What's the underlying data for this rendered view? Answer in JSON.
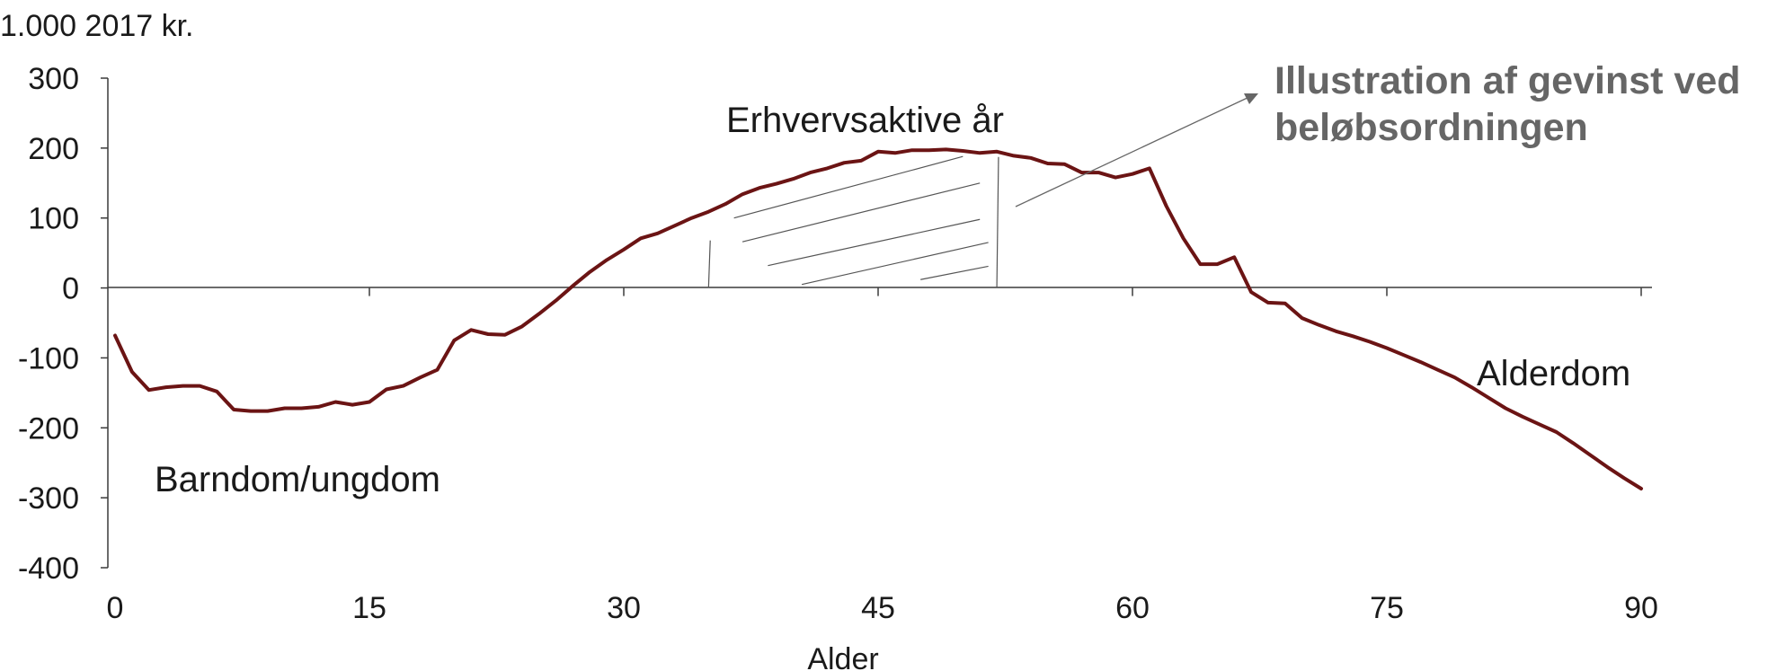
{
  "chart_data": {
    "type": "line",
    "title": "",
    "unit_label": "1.000 2017 kr.",
    "xlabel": "Alder",
    "ylabel": "",
    "xlim": [
      0,
      90
    ],
    "ylim": [
      -400,
      300
    ],
    "x_ticks": [
      0,
      15,
      30,
      45,
      60,
      75,
      90
    ],
    "y_ticks": [
      300,
      200,
      100,
      0,
      -100,
      -200,
      -300,
      -400
    ],
    "line_color": "#6b1414",
    "grid": false,
    "legend": "none",
    "series": [
      {
        "x": [
          0,
          1,
          2,
          3,
          4,
          5,
          6,
          7,
          8,
          9,
          10,
          11,
          12,
          13,
          14,
          15,
          16,
          17,
          18,
          19,
          20,
          21,
          22,
          23,
          24,
          25,
          26,
          27,
          28,
          29,
          30,
          31,
          32,
          33,
          34,
          35,
          36,
          37,
          38,
          39,
          40,
          41,
          42,
          43,
          44,
          45,
          46,
          47,
          48,
          49,
          50,
          51,
          52,
          53,
          54,
          55,
          56,
          57,
          58,
          59,
          60,
          61,
          62,
          63,
          64,
          65,
          66,
          67,
          68,
          69,
          70,
          71,
          72,
          73,
          74,
          75,
          76,
          77,
          78,
          79,
          80,
          81,
          82,
          83,
          84,
          85,
          86,
          87,
          88,
          89,
          90
        ],
        "values": [
          -68,
          -120,
          -146,
          -142,
          -140,
          -140,
          -148,
          -174,
          -176,
          -176,
          -172,
          -172,
          -170,
          -163,
          -167,
          -163,
          -145,
          -140,
          -128,
          -117,
          -75,
          -60,
          -66,
          -67,
          -55,
          -37,
          -18,
          3,
          23,
          40,
          55,
          71,
          78,
          89,
          100,
          109,
          120,
          134,
          143,
          149,
          156,
          165,
          171,
          179,
          182,
          195,
          193,
          197,
          197,
          198,
          196,
          193,
          195,
          189,
          186,
          178,
          177,
          165,
          165,
          158,
          163,
          171,
          117,
          71,
          34,
          34,
          44,
          -6,
          -21,
          -22,
          -43,
          -53,
          -62,
          -69,
          -77,
          -86,
          -96,
          -106,
          -117,
          -128,
          -142,
          -157,
          -172,
          -184,
          -195,
          -206,
          -222,
          -239,
          -256,
          -272,
          -287
        ]
      }
    ],
    "annotations": {
      "childhood": "Barndom/ungdom",
      "working_years": "Erhvervsaktive år",
      "old_age": "Alderdom",
      "gain_line1": "Illustration af gevinst ved",
      "gain_line2": "beløbsordningen"
    },
    "gain_label_color": "#666666",
    "shaded_region_x": [
      35,
      52
    ]
  }
}
